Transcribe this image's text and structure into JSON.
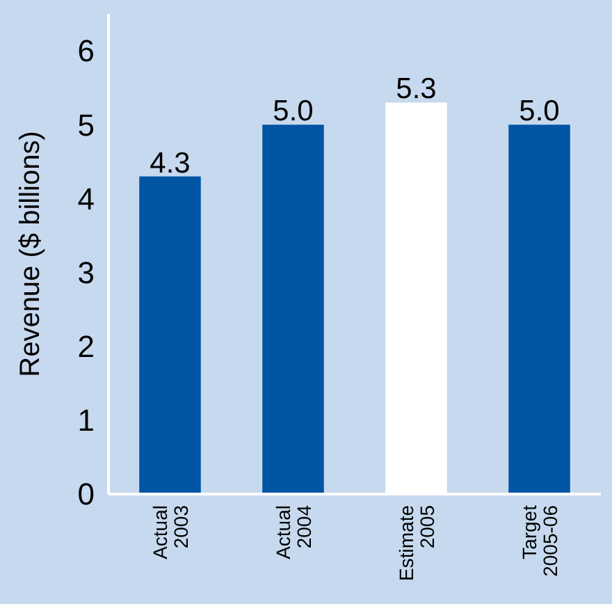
{
  "chart_data": {
    "type": "bar",
    "ylabel": "Revenue ($ billions)",
    "categories": [
      "Actual 2003",
      "Actual 2004",
      "Estimate 2005",
      "Target 2005-06"
    ],
    "values": [
      4.3,
      5.0,
      5.3,
      5.0
    ],
    "colors": [
      "#0055a4",
      "#0055a4",
      "#ffffff",
      "#0055a4"
    ],
    "value_labels": [
      "4.3",
      "5.0",
      "5.3",
      "5.0"
    ],
    "ylim": [
      0,
      6.5
    ],
    "yticks": [
      0,
      1,
      2,
      3,
      4,
      5,
      6
    ],
    "grid": false
  }
}
